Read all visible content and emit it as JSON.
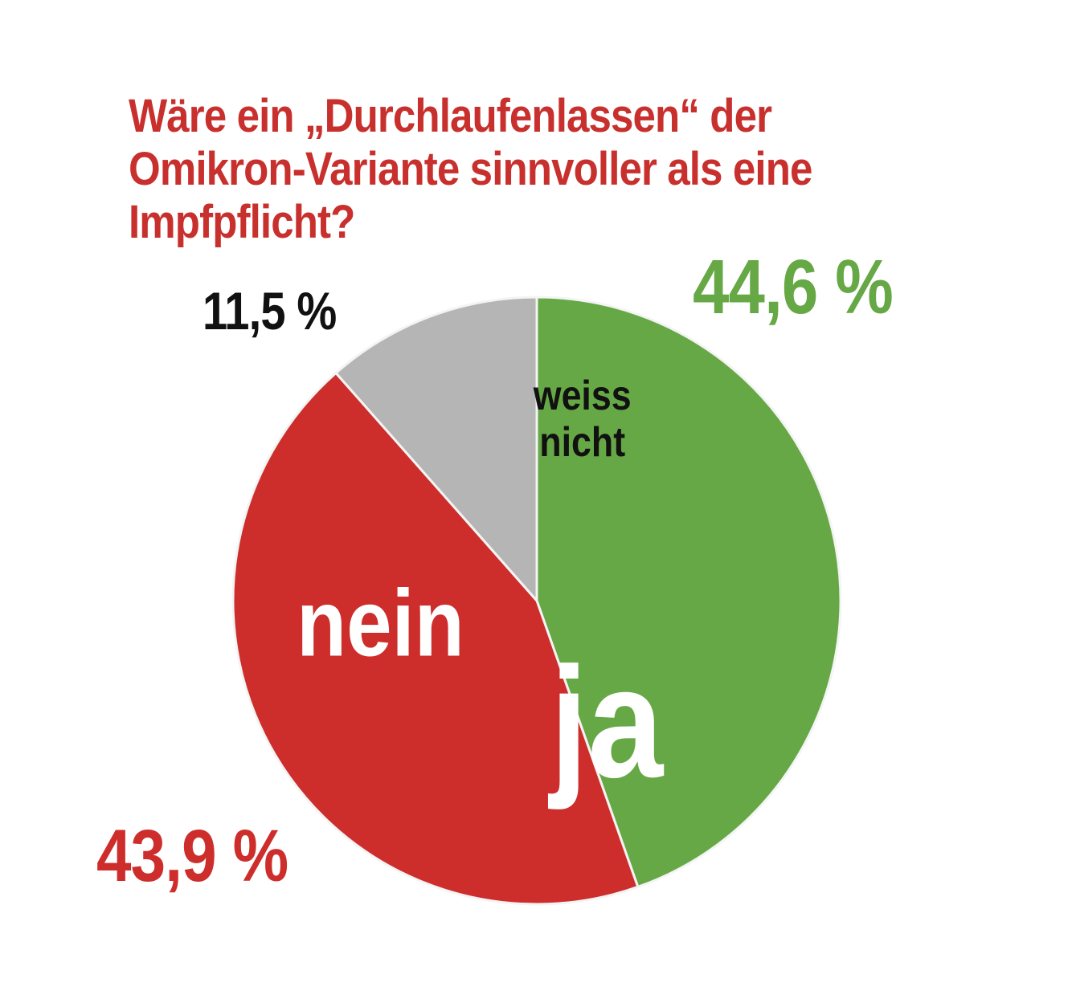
{
  "colors": {
    "ja": "#66a845",
    "nein": "#cd2e2c",
    "weiss_nicht": "#b5b5b5",
    "title": "#c8302d",
    "dark_text": "#111111",
    "light_text": "#ffffff"
  },
  "chart_data": {
    "type": "pie",
    "title": "Wäre ein „Durchlaufenlassen“ der Omikron-Variante sinnvoller als eine Impfpflicht?",
    "title_lines": [
      "Wäre ein „Durchlaufenlassen“ der",
      "Omikron-Variante sinnvoller als eine",
      "Impfpflicht?"
    ],
    "slices": [
      {
        "key": "ja",
        "label": "ja",
        "label_lines": [
          "ja"
        ],
        "value": 44.6,
        "value_label": "44,6 %",
        "unit": "%"
      },
      {
        "key": "nein",
        "label": "nein",
        "label_lines": [
          "nein"
        ],
        "value": 43.9,
        "value_label": "43,9 %",
        "unit": "%"
      },
      {
        "key": "weiss_nicht",
        "label": "weiss nicht",
        "label_lines": [
          "weiss",
          "nicht"
        ],
        "value": 11.5,
        "value_label": "11,5 %",
        "unit": "%"
      }
    ],
    "start_angle_deg": 0,
    "direction": "clockwise"
  }
}
